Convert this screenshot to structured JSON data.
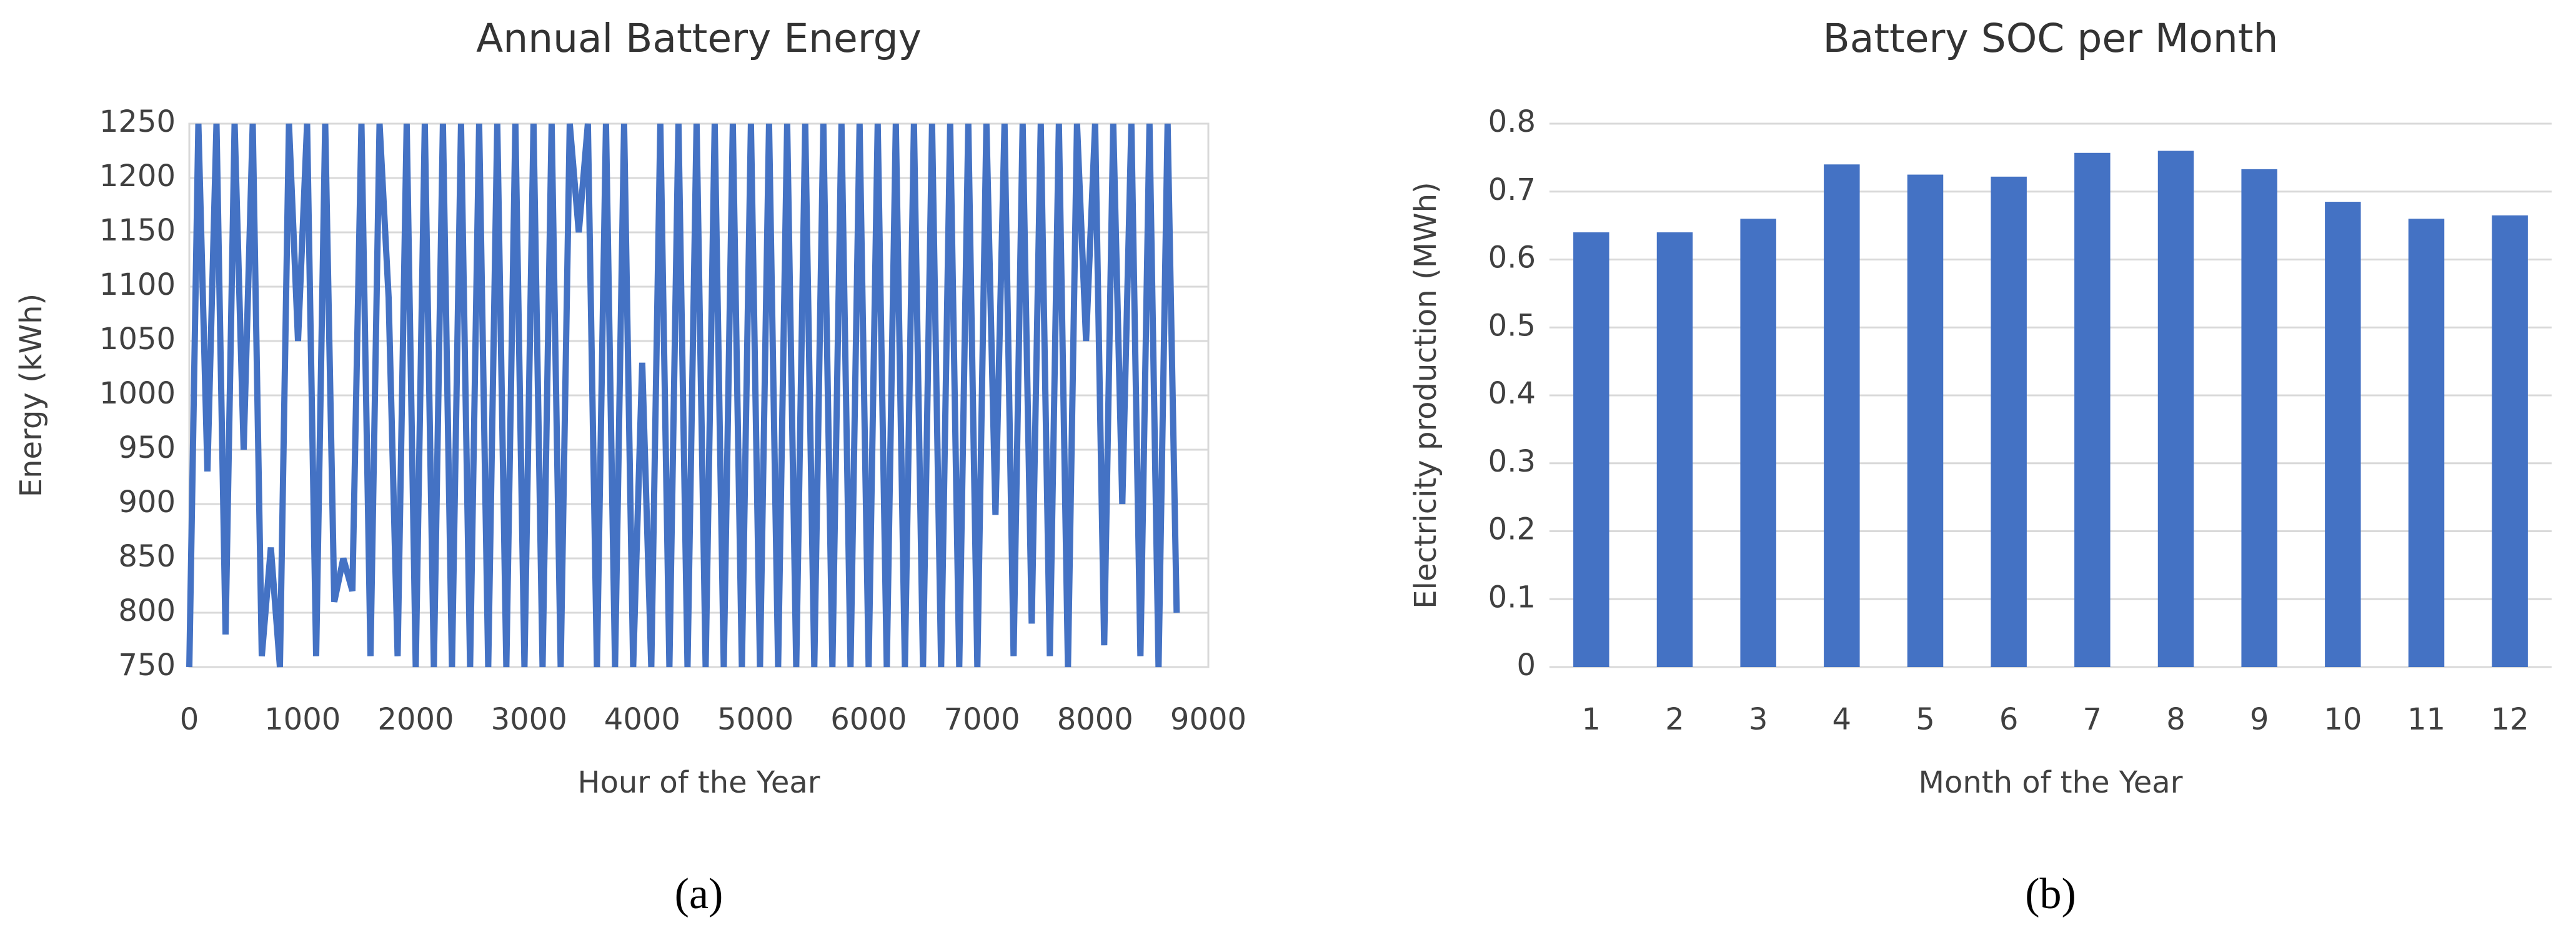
{
  "chart_data": [
    {
      "type": "line",
      "title": "Annual Battery Energy",
      "x_label": "Hour of the Year",
      "y_label": "Energy (kWh)",
      "caption": "(a)",
      "color": "#4472c4",
      "grid": true,
      "xlim": [
        0,
        9000
      ],
      "xticks": [
        0,
        1000,
        2000,
        3000,
        4000,
        5000,
        6000,
        7000,
        8000,
        9000
      ],
      "ylim": [
        750,
        1250
      ],
      "yticks": [
        750,
        800,
        850,
        900,
        950,
        1000,
        1050,
        1100,
        1150,
        1200,
        1250
      ],
      "x": [
        0,
        80,
        160,
        240,
        320,
        400,
        480,
        560,
        640,
        720,
        800,
        880,
        960,
        1040,
        1120,
        1200,
        1280,
        1360,
        1440,
        1520,
        1600,
        1680,
        1760,
        1840,
        1920,
        2000,
        2080,
        2160,
        2240,
        2320,
        2400,
        2480,
        2560,
        2640,
        2720,
        2800,
        2880,
        2960,
        3040,
        3120,
        3200,
        3280,
        3360,
        3440,
        3520,
        3600,
        3680,
        3760,
        3840,
        3920,
        4000,
        4080,
        4160,
        4240,
        4320,
        4400,
        4480,
        4560,
        4640,
        4720,
        4800,
        4880,
        4960,
        5040,
        5120,
        5200,
        5280,
        5360,
        5440,
        5520,
        5600,
        5680,
        5760,
        5840,
        5920,
        6000,
        6080,
        6160,
        6240,
        6320,
        6400,
        6480,
        6560,
        6640,
        6720,
        6800,
        6880,
        6960,
        7040,
        7120,
        7200,
        7280,
        7360,
        7440,
        7520,
        7600,
        7680,
        7760,
        7840,
        7920,
        8000,
        8080,
        8160,
        8240,
        8320,
        8400,
        8480,
        8560,
        8640,
        8720
      ],
      "values": [
        750,
        1250,
        930,
        1250,
        780,
        1250,
        950,
        1250,
        760,
        860,
        750,
        1250,
        1050,
        1250,
        760,
        1250,
        810,
        850,
        820,
        1250,
        760,
        1250,
        1090,
        760,
        1250,
        750,
        1250,
        750,
        1250,
        750,
        1250,
        750,
        1250,
        750,
        1250,
        750,
        1250,
        750,
        1250,
        750,
        1250,
        750,
        1250,
        1150,
        1250,
        750,
        1250,
        750,
        1250,
        750,
        1030,
        750,
        1250,
        750,
        1250,
        750,
        1250,
        750,
        1250,
        750,
        1250,
        750,
        1250,
        750,
        1250,
        750,
        1250,
        750,
        1250,
        750,
        1250,
        750,
        1250,
        750,
        1250,
        750,
        1250,
        750,
        1250,
        750,
        1250,
        750,
        1250,
        750,
        1250,
        750,
        1250,
        750,
        1250,
        890,
        1250,
        760,
        1250,
        790,
        1250,
        760,
        1250,
        750,
        1250,
        1050,
        1250,
        770,
        1250,
        900,
        1250,
        760,
        1250,
        750,
        1250,
        800
      ]
    },
    {
      "type": "bar",
      "title": "Battery SOC per Month",
      "x_label": "Month of the Year",
      "y_label": "Electricity production (MWh)",
      "caption": "(b)",
      "color": "#4472c4",
      "grid": true,
      "categories": [
        "1",
        "2",
        "3",
        "4",
        "5",
        "6",
        "7",
        "8",
        "9",
        "10",
        "11",
        "12"
      ],
      "values": [
        0.64,
        0.64,
        0.66,
        0.74,
        0.725,
        0.722,
        0.757,
        0.76,
        0.733,
        0.685,
        0.66,
        0.665
      ],
      "ylim": [
        0,
        0.8
      ],
      "yticks": [
        0,
        0.1,
        0.2,
        0.3,
        0.4,
        0.5,
        0.6,
        0.7,
        0.8
      ]
    }
  ]
}
